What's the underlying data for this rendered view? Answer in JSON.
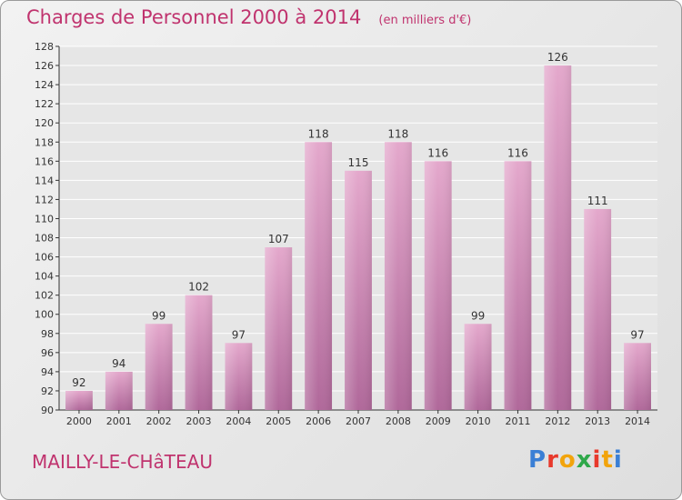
{
  "title": "Charges de Personnel 2000 à 2014",
  "unit": "(en milliers d'€)",
  "location": "MAILLY-LE-CHâTEAU",
  "brand": {
    "letters": [
      "P",
      "r",
      "o",
      "x",
      "i",
      "t",
      "i"
    ],
    "colors": [
      "#3a7fd5",
      "#e8392c",
      "#f2a40c",
      "#2fa84a",
      "#e8392c",
      "#f2a40c",
      "#3a7fd5"
    ]
  },
  "colors": {
    "bar": "#cf86b1",
    "title": "#c0336e",
    "axis": "#333333"
  },
  "chart_data": {
    "type": "bar",
    "categories": [
      "2000",
      "2001",
      "2002",
      "2003",
      "2004",
      "2005",
      "2006",
      "2007",
      "2008",
      "2009",
      "2010",
      "2011",
      "2012",
      "2013",
      "2014"
    ],
    "values": [
      92,
      94,
      99,
      102,
      97,
      107,
      118,
      115,
      118,
      116,
      99,
      116,
      126,
      111,
      97
    ],
    "ylim": [
      90,
      128
    ],
    "yticks": [
      90,
      92,
      94,
      96,
      98,
      100,
      102,
      104,
      106,
      108,
      110,
      112,
      114,
      116,
      118,
      120,
      122,
      124,
      126,
      128
    ],
    "grid": true,
    "data_labels": true
  }
}
